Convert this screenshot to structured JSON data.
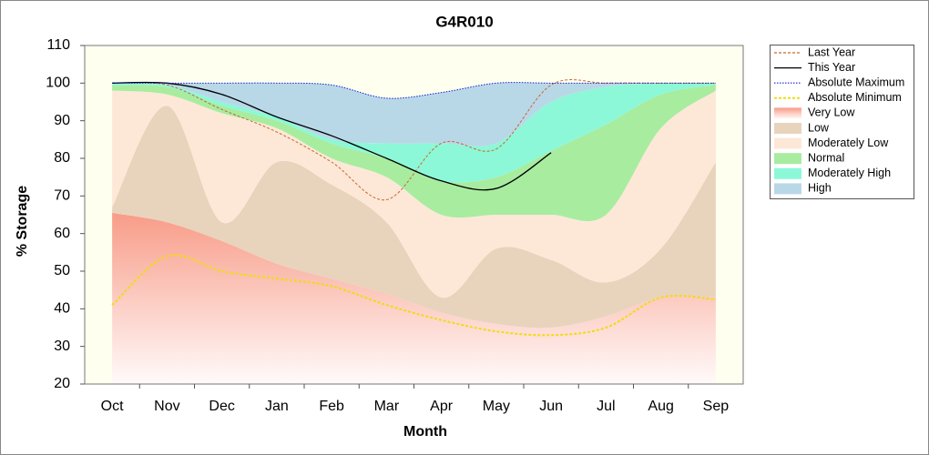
{
  "chart_data": {
    "type": "band-line",
    "title": "G4R010",
    "x_label": "Month",
    "y_label": "% Storage",
    "categories": [
      "Oct",
      "Nov",
      "Dec",
      "Jan",
      "Feb",
      "Mar",
      "Apr",
      "May",
      "Jun",
      "Jul",
      "Aug",
      "Sep"
    ],
    "ylim": [
      20,
      110
    ],
    "yticks": [
      20,
      30,
      40,
      50,
      60,
      70,
      80,
      90,
      100,
      110
    ],
    "grid": false,
    "legend": "right",
    "series": [
      {
        "name": "Last Year",
        "color": "#c8682c",
        "style": "dashed",
        "values": [
          100,
          99.5,
          93,
          87,
          79,
          69,
          84,
          82.5,
          99.5,
          100,
          100,
          100
        ]
      },
      {
        "name": "This Year",
        "color": "#000000",
        "style": "solid",
        "values": [
          100,
          100,
          97,
          91,
          86,
          80,
          74,
          72,
          81.5,
          null,
          null,
          null
        ]
      },
      {
        "name": "Absolute Maximum",
        "color": "#1020d0",
        "style": "dotted",
        "values": [
          100,
          100,
          100,
          100,
          99.5,
          96,
          97.5,
          100,
          100,
          100,
          100,
          100
        ]
      },
      {
        "name": "Absolute Minimum",
        "color": "#f0dc10",
        "style": "dashed",
        "values": [
          41,
          54,
          50,
          48,
          46,
          41,
          37,
          34,
          33,
          35,
          43,
          42.5
        ]
      },
      {
        "name": "Very Low",
        "color": "#f89c88",
        "style": "band",
        "values": [
          65.5,
          63,
          58,
          52,
          48,
          44,
          39,
          36,
          35,
          38,
          43,
          43
        ]
      },
      {
        "name": "Low",
        "color": "#e8d4bc",
        "style": "band",
        "values": [
          67,
          94,
          63,
          79,
          73,
          63,
          43,
          56,
          53,
          47,
          56,
          79
        ]
      },
      {
        "name": "Moderately Low",
        "color": "#fde8d8",
        "style": "band",
        "values": [
          98,
          97,
          92,
          88,
          80,
          75,
          65,
          65,
          65,
          65,
          88,
          98
        ]
      },
      {
        "name": "Normal",
        "color": "#a8eca0",
        "style": "band",
        "values": [
          99.5,
          99,
          94,
          90,
          84,
          80,
          74,
          75,
          82,
          89,
          97,
          99.5
        ]
      },
      {
        "name": "Moderately High",
        "color": "#8cf8d8",
        "style": "band",
        "values": [
          100,
          99.5,
          95,
          91,
          85,
          84,
          84,
          84,
          95,
          99,
          100,
          100
        ]
      },
      {
        "name": "High",
        "color": "#b8d8e8",
        "style": "band",
        "values": [
          100,
          100,
          100,
          100,
          99.5,
          96,
          97.5,
          100,
          100,
          100,
          100,
          100
        ]
      }
    ]
  }
}
